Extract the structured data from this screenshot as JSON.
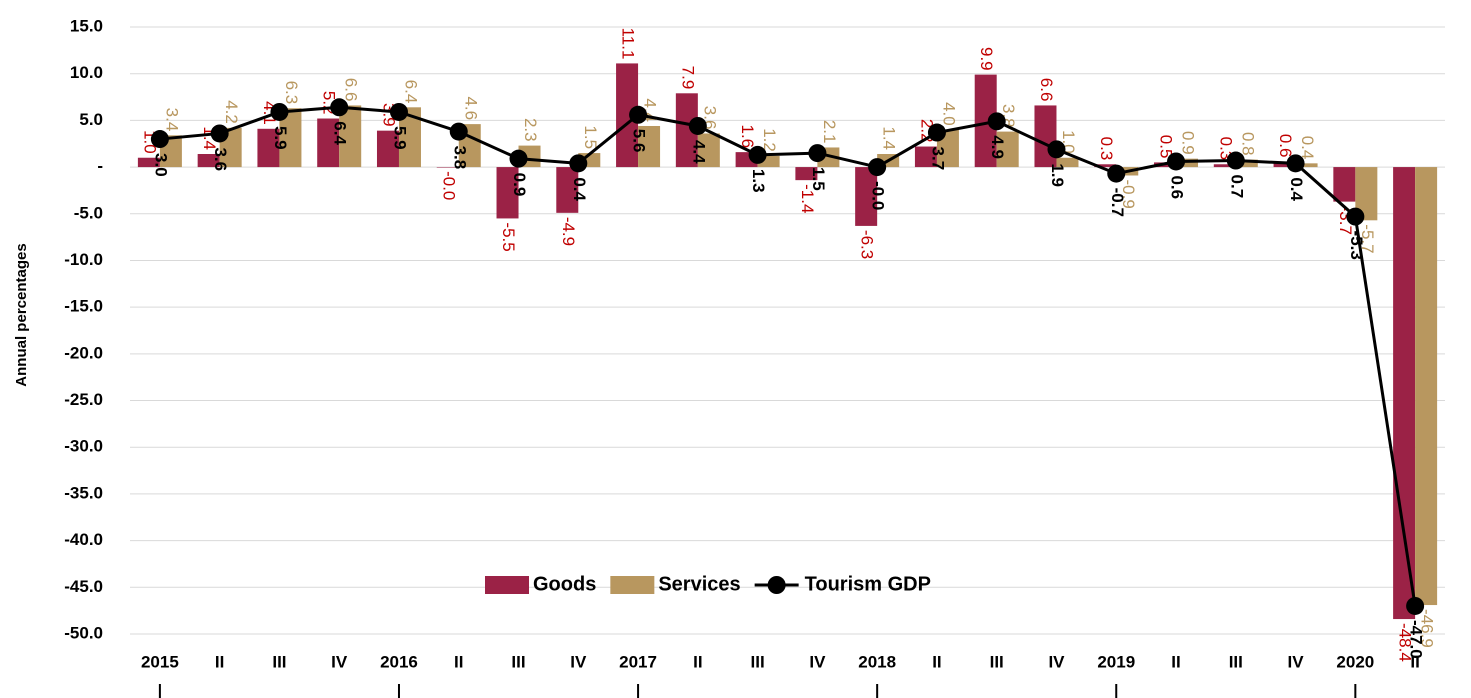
{
  "chart_data": {
    "type": "bar_line",
    "y_label": "Annual percentages",
    "categories": [
      "2015",
      "II",
      "III",
      "IV",
      "2016",
      "II",
      "III",
      "IV",
      "2017",
      "II",
      "III",
      "IV",
      "2018",
      "II",
      "III",
      "IV",
      "2019",
      "II",
      "III",
      "IV",
      "2020",
      "II"
    ],
    "series": [
      {
        "name": "Goods",
        "type": "bar",
        "color": "#9b2246",
        "values": [
          1.0,
          1.4,
          4.1,
          5.2,
          3.9,
          -0.0,
          -5.5,
          -4.9,
          11.1,
          7.9,
          1.6,
          -1.4,
          -6.3,
          2.2,
          9.9,
          6.6,
          0.3,
          0.5,
          0.3,
          0.6,
          -3.7,
          -48.4
        ],
        "value_labels": [
          "1.0",
          "1.4",
          "4.1",
          "5.2",
          "3.9",
          "-0.0",
          "-5.5",
          "-4.9",
          "11.1",
          "7.9",
          "1.6",
          "-1.4",
          "-6.3",
          "2.2",
          "9.9",
          "6.6",
          "0.3",
          "0.5",
          "0.3",
          "0.6",
          "-3.7",
          "-48.4"
        ],
        "label_color": "#c00000"
      },
      {
        "name": "Services",
        "type": "bar",
        "color": "#b8975f",
        "values": [
          3.4,
          4.2,
          6.3,
          6.6,
          6.4,
          4.6,
          2.3,
          1.5,
          4.4,
          3.6,
          1.2,
          2.1,
          1.4,
          4.0,
          3.8,
          1.0,
          -0.9,
          0.9,
          0.8,
          0.4,
          -5.7,
          -46.9
        ],
        "value_labels": [
          "3.4",
          "4.2",
          "6.3",
          "6.6",
          "6.4",
          "4.6",
          "2.3",
          "1.5",
          "4.4",
          "3.6",
          "1.2",
          "2.1",
          "1.4",
          "4.0",
          "3.8",
          "1.0",
          "-0.9",
          "0.9",
          "0.8",
          "0.4",
          "-5.7",
          "-46.9"
        ],
        "label_color": "#b8975f"
      },
      {
        "name": "Tourism GDP",
        "type": "line",
        "color": "#000000",
        "values": [
          3.0,
          3.6,
          5.9,
          6.4,
          5.9,
          3.8,
          0.9,
          0.4,
          5.6,
          4.4,
          1.3,
          1.5,
          -0.0,
          3.7,
          4.9,
          1.9,
          -0.7,
          0.6,
          0.7,
          0.4,
          -5.3,
          -47.0
        ],
        "value_labels": [
          "3.0",
          "3.6",
          "5.9",
          "6.4",
          "5.9",
          "3.8",
          "0.9",
          "0.4",
          "5.6",
          "4.4",
          "1.3",
          "1.5",
          "-0.0",
          "3.7",
          "4.9",
          "1.9",
          "-0.7",
          "0.6",
          "0.7",
          "0.4",
          "-5.3",
          "-47.0"
        ],
        "label_color": "#000000"
      }
    ],
    "ylim": [
      -50,
      15
    ],
    "yticks": [
      {
        "value": 15,
        "label": "15.0"
      },
      {
        "value": 10,
        "label": "10.0"
      },
      {
        "value": 5,
        "label": "5.0"
      },
      {
        "value": 0,
        "label": "-"
      },
      {
        "value": -5,
        "label": "-5.0"
      },
      {
        "value": -10,
        "label": "-10.0"
      },
      {
        "value": -15,
        "label": "-15.0"
      },
      {
        "value": -20,
        "label": "-20.0"
      },
      {
        "value": -25,
        "label": "-25.0"
      },
      {
        "value": -30,
        "label": "-30.0"
      },
      {
        "value": -35,
        "label": "-35.0"
      },
      {
        "value": -40,
        "label": "-40.0"
      },
      {
        "value": -45,
        "label": "-45.0"
      },
      {
        "value": -50,
        "label": "-50.0"
      }
    ],
    "grid": true
  }
}
